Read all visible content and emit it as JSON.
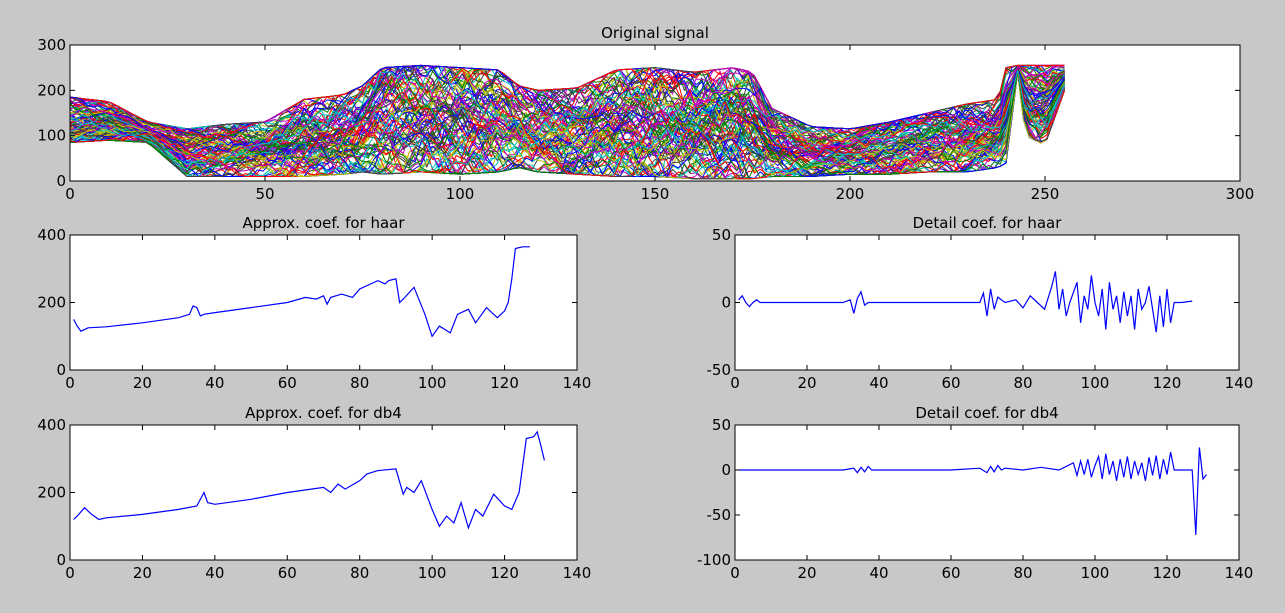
{
  "figure": {
    "background": "#c8c8c8",
    "axes_background": "#ffffff",
    "line_color": "#0000ff"
  },
  "chart_data": [
    {
      "type": "line",
      "title": "Original signal",
      "xlim": [
        0,
        300
      ],
      "ylim": [
        0,
        300
      ],
      "xticks": [
        0,
        50,
        100,
        150,
        200,
        250,
        300
      ],
      "yticks": [
        0,
        100,
        200,
        300
      ],
      "series_note": "dense bundle of many overlapping multicolor signals",
      "palette": [
        "#0000ff",
        "#008000",
        "#ff0000",
        "#00bfbf",
        "#bf00bf",
        "#bfbf00",
        "#404040"
      ],
      "envelope": {
        "x": [
          0,
          10,
          20,
          30,
          40,
          50,
          60,
          70,
          75,
          80,
          90,
          100,
          110,
          115,
          120,
          130,
          140,
          150,
          160,
          170,
          175,
          180,
          190,
          200,
          210,
          220,
          230,
          238,
          240,
          243,
          245,
          250,
          255
        ],
        "upper": [
          185,
          175,
          130,
          115,
          125,
          130,
          180,
          190,
          210,
          250,
          255,
          250,
          245,
          210,
          200,
          205,
          245,
          250,
          240,
          250,
          240,
          160,
          120,
          115,
          130,
          150,
          170,
          180,
          250,
          255,
          255,
          255,
          255
        ],
        "lower": [
          85,
          90,
          85,
          10,
          10,
          10,
          10,
          15,
          20,
          15,
          20,
          15,
          20,
          30,
          20,
          15,
          10,
          10,
          5,
          5,
          5,
          10,
          10,
          15,
          15,
          20,
          20,
          30,
          40,
          240,
          100,
          80,
          200
        ]
      }
    },
    {
      "type": "line",
      "title": "Approx. coef. for haar",
      "xlim": [
        0,
        140
      ],
      "ylim": [
        0,
        400
      ],
      "xticks": [
        0,
        20,
        40,
        60,
        80,
        100,
        120,
        140
      ],
      "yticks": [
        0,
        200,
        400
      ],
      "x": [
        1,
        2,
        3,
        5,
        10,
        20,
        30,
        33,
        34,
        35,
        36,
        37,
        40,
        50,
        60,
        65,
        68,
        70,
        71,
        72,
        75,
        78,
        80,
        85,
        87,
        88,
        90,
        91,
        92,
        95,
        98,
        100,
        102,
        105,
        107,
        110,
        112,
        115,
        118,
        120,
        121,
        122,
        123,
        125,
        127
      ],
      "y": [
        150,
        130,
        115,
        125,
        128,
        140,
        155,
        165,
        190,
        185,
        160,
        165,
        170,
        185,
        200,
        215,
        210,
        220,
        195,
        215,
        225,
        215,
        240,
        265,
        255,
        265,
        270,
        200,
        210,
        245,
        165,
        100,
        130,
        110,
        165,
        180,
        140,
        185,
        155,
        175,
        200,
        270,
        360,
        365,
        365
      ]
    },
    {
      "type": "line",
      "title": "Detail coef. for haar",
      "xlim": [
        0,
        140
      ],
      "ylim": [
        -50,
        50
      ],
      "xticks": [
        0,
        20,
        40,
        60,
        80,
        100,
        120,
        140
      ],
      "yticks": [
        -50,
        0,
        50
      ],
      "x": [
        1,
        2,
        3,
        4,
        5,
        6,
        7,
        10,
        20,
        30,
        32,
        33,
        34,
        35,
        36,
        37,
        40,
        50,
        60,
        68,
        69,
        70,
        71,
        72,
        73,
        75,
        78,
        80,
        82,
        84,
        86,
        88,
        89,
        90,
        91,
        92,
        93,
        95,
        96,
        97,
        98,
        99,
        100,
        101,
        102,
        103,
        104,
        105,
        106,
        107,
        108,
        109,
        110,
        111,
        112,
        113,
        114,
        115,
        116,
        117,
        118,
        119,
        120,
        121,
        122,
        124,
        127
      ],
      "y": [
        2,
        5,
        0,
        -3,
        0,
        2,
        0,
        0,
        0,
        0,
        2,
        -8,
        3,
        8,
        -2,
        0,
        0,
        0,
        0,
        0,
        7,
        -10,
        10,
        -5,
        4,
        0,
        2,
        -4,
        5,
        0,
        -5,
        12,
        23,
        -5,
        10,
        -10,
        0,
        15,
        -15,
        5,
        -5,
        20,
        0,
        -10,
        10,
        -20,
        15,
        -5,
        5,
        -15,
        8,
        -10,
        5,
        -20,
        10,
        -5,
        0,
        12,
        -5,
        -22,
        5,
        -18,
        10,
        -15,
        0,
        0,
        1
      ]
    },
    {
      "type": "line",
      "title": "Approx. coef. for db4",
      "xlim": [
        0,
        140
      ],
      "ylim": [
        0,
        400
      ],
      "xticks": [
        0,
        20,
        40,
        60,
        80,
        100,
        120,
        140
      ],
      "yticks": [
        0,
        200,
        400
      ],
      "x": [
        1,
        2,
        4,
        6,
        8,
        10,
        20,
        30,
        35,
        37,
        38,
        40,
        50,
        60,
        70,
        72,
        74,
        76,
        80,
        82,
        85,
        90,
        92,
        93,
        95,
        97,
        100,
        102,
        104,
        106,
        108,
        110,
        112,
        114,
        117,
        120,
        122,
        124,
        126,
        128,
        129,
        130,
        131
      ],
      "y": [
        120,
        130,
        155,
        135,
        120,
        125,
        135,
        150,
        160,
        200,
        170,
        165,
        180,
        200,
        215,
        200,
        225,
        210,
        235,
        255,
        265,
        270,
        195,
        215,
        200,
        235,
        150,
        100,
        130,
        110,
        170,
        95,
        150,
        130,
        195,
        160,
        150,
        200,
        360,
        365,
        380,
        340,
        295
      ]
    },
    {
      "type": "line",
      "title": "Detail coef. for db4",
      "xlim": [
        0,
        140
      ],
      "ylim": [
        -100,
        50
      ],
      "xticks": [
        0,
        20,
        40,
        60,
        80,
        100,
        120,
        140
      ],
      "yticks": [
        -100,
        -50,
        0,
        50
      ],
      "x": [
        1,
        10,
        20,
        30,
        33,
        34,
        35,
        36,
        37,
        38,
        40,
        50,
        60,
        68,
        70,
        71,
        72,
        73,
        74,
        75,
        80,
        85,
        90,
        94,
        95,
        96,
        97,
        98,
        99,
        100,
        101,
        102,
        103,
        104,
        105,
        106,
        107,
        108,
        109,
        110,
        111,
        112,
        113,
        114,
        115,
        116,
        117,
        118,
        119,
        120,
        121,
        122,
        125,
        127,
        128,
        129,
        130,
        131
      ],
      "y": [
        0,
        0,
        0,
        0,
        2,
        -3,
        3,
        -2,
        4,
        0,
        0,
        0,
        0,
        2,
        -3,
        4,
        -2,
        5,
        0,
        2,
        0,
        3,
        0,
        8,
        -6,
        10,
        -5,
        12,
        -8,
        5,
        15,
        -10,
        18,
        -5,
        10,
        -12,
        12,
        -8,
        15,
        -10,
        10,
        -5,
        8,
        -12,
        14,
        -6,
        16,
        -10,
        12,
        -5,
        20,
        0,
        0,
        0,
        -72,
        25,
        -10,
        -5
      ]
    }
  ]
}
